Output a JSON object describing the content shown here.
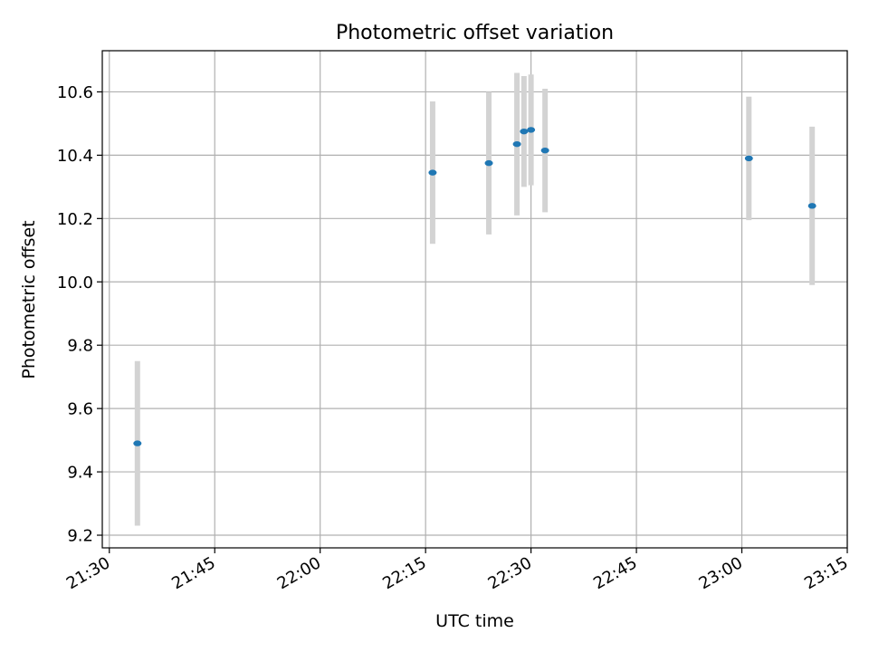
{
  "chart_data": {
    "type": "scatter",
    "title": "Photometric offset variation",
    "xlabel": "UTC time",
    "ylabel": "Photometric offset",
    "x_ticks": [
      "21:30",
      "21:45",
      "22:00",
      "22:15",
      "22:30",
      "22:45",
      "23:00",
      "23:15"
    ],
    "y_ticks": [
      "9.2",
      "9.4",
      "9.6",
      "9.8",
      "10.0",
      "10.2",
      "10.4",
      "10.6"
    ],
    "xlim": [
      "21:29",
      "23:15"
    ],
    "ylim": [
      9.16,
      10.73
    ],
    "grid": true,
    "legend": "none",
    "series": [
      {
        "marker_color": "#1f77b4",
        "errorbar_color": "#d3d3d3",
        "points": [
          {
            "x": "21:34",
            "y": 9.49,
            "err": 0.26
          },
          {
            "x": "22:16",
            "y": 10.345,
            "err": 0.225
          },
          {
            "x": "22:24",
            "y": 10.375,
            "err": 0.225
          },
          {
            "x": "22:28",
            "y": 10.435,
            "err": 0.225
          },
          {
            "x": "22:29",
            "y": 10.475,
            "err": 0.175
          },
          {
            "x": "22:30",
            "y": 10.48,
            "err": 0.175
          },
          {
            "x": "22:32",
            "y": 10.415,
            "err": 0.195
          },
          {
            "x": "23:01",
            "y": 10.39,
            "err": 0.195
          },
          {
            "x": "23:10",
            "y": 10.24,
            "err": 0.25
          }
        ]
      }
    ]
  }
}
